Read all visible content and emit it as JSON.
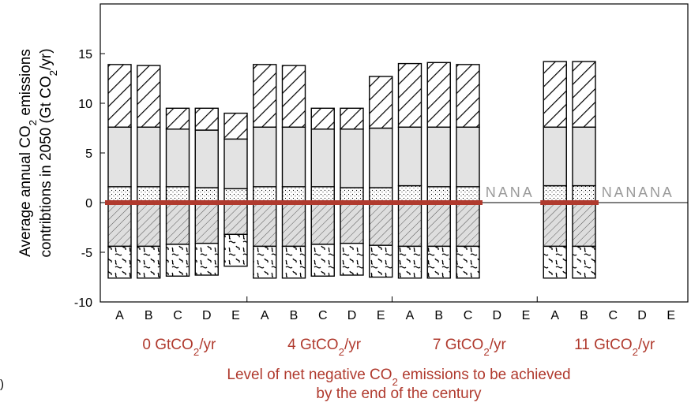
{
  "chart_data": {
    "type": "bar",
    "stacked": true,
    "ylabel_parts": [
      "Average annual CO",
      "2",
      " emissions",
      "contribtions in 2050 (Gt CO",
      "2",
      "/yr)"
    ],
    "xlabel_parts": [
      "Level of net negative CO",
      "2",
      " emissions to be achieved",
      "by the end of the century"
    ],
    "ylim": [
      -10,
      20
    ],
    "yticks": [
      -10,
      -5,
      0,
      5,
      10,
      15
    ],
    "grid": false,
    "legend": "none",
    "colors": {
      "accent": "#b03a2e",
      "gray_fill": "#e3e3e3",
      "frame": "#000000",
      "na_text": "#9a9a9a"
    },
    "scenario_groups": [
      {
        "label_parts": [
          "0 GtCO",
          "2",
          "/yr"
        ],
        "categories": [
          "A",
          "B",
          "C",
          "D",
          "E"
        ]
      },
      {
        "label_parts": [
          "4 GtCO",
          "2",
          "/yr"
        ],
        "categories": [
          "A",
          "B",
          "C",
          "D",
          "E"
        ]
      },
      {
        "label_parts": [
          "7 GtCO",
          "2",
          "/yr"
        ],
        "categories": [
          "A",
          "B",
          "C",
          "D",
          "E"
        ]
      },
      {
        "label_parts": [
          "11 GtCO",
          "2",
          "/yr"
        ],
        "categories": [
          "A",
          "B",
          "C",
          "D",
          "E"
        ]
      }
    ],
    "na_text": "NA",
    "stack_layers": [
      {
        "key": "dotted",
        "pattern": "dots"
      },
      {
        "key": "gray",
        "pattern": "solid-gray"
      },
      {
        "key": "diagonal",
        "pattern": "wide-hatch"
      },
      {
        "key": "neg_hatch",
        "pattern": "fine-hatch-gray"
      },
      {
        "key": "neg_squiggle",
        "pattern": "squiggle"
      }
    ],
    "bars": [
      {
        "group": 0,
        "category": "A",
        "dotted": [
          0,
          1.6
        ],
        "gray": [
          1.6,
          7.6
        ],
        "diagonal": [
          7.6,
          13.9
        ],
        "neg_hatch": [
          -4.4,
          0
        ],
        "neg_squiggle": [
          -7.6,
          -4.4
        ]
      },
      {
        "group": 0,
        "category": "B",
        "dotted": [
          0,
          1.6
        ],
        "gray": [
          1.6,
          7.6
        ],
        "diagonal": [
          7.6,
          13.8
        ],
        "neg_hatch": [
          -4.4,
          0
        ],
        "neg_squiggle": [
          -7.6,
          -4.4
        ]
      },
      {
        "group": 0,
        "category": "C",
        "dotted": [
          0,
          1.6
        ],
        "gray": [
          1.6,
          7.4
        ],
        "diagonal": [
          7.4,
          9.5
        ],
        "neg_hatch": [
          -4.2,
          0
        ],
        "neg_squiggle": [
          -7.4,
          -4.2
        ]
      },
      {
        "group": 0,
        "category": "D",
        "dotted": [
          0,
          1.5
        ],
        "gray": [
          1.5,
          7.3
        ],
        "diagonal": [
          7.3,
          9.5
        ],
        "neg_hatch": [
          -4.1,
          0
        ],
        "neg_squiggle": [
          -7.3,
          -4.1
        ]
      },
      {
        "group": 0,
        "category": "E",
        "dotted": [
          0,
          1.4
        ],
        "gray": [
          1.4,
          6.4
        ],
        "diagonal": [
          6.4,
          9.0
        ],
        "neg_hatch": [
          -3.2,
          0
        ],
        "neg_squiggle": [
          -6.4,
          -3.2
        ]
      },
      {
        "group": 1,
        "category": "A",
        "dotted": [
          0,
          1.6
        ],
        "gray": [
          1.6,
          7.6
        ],
        "diagonal": [
          7.6,
          13.9
        ],
        "neg_hatch": [
          -4.4,
          0
        ],
        "neg_squiggle": [
          -7.6,
          -4.4
        ]
      },
      {
        "group": 1,
        "category": "B",
        "dotted": [
          0,
          1.6
        ],
        "gray": [
          1.6,
          7.6
        ],
        "diagonal": [
          7.6,
          13.8
        ],
        "neg_hatch": [
          -4.4,
          0
        ],
        "neg_squiggle": [
          -7.6,
          -4.4
        ]
      },
      {
        "group": 1,
        "category": "C",
        "dotted": [
          0,
          1.6
        ],
        "gray": [
          1.6,
          7.4
        ],
        "diagonal": [
          7.4,
          9.5
        ],
        "neg_hatch": [
          -4.2,
          0
        ],
        "neg_squiggle": [
          -7.4,
          -4.2
        ]
      },
      {
        "group": 1,
        "category": "D",
        "dotted": [
          0,
          1.5
        ],
        "gray": [
          1.5,
          7.4
        ],
        "diagonal": [
          7.4,
          9.5
        ],
        "neg_hatch": [
          -4.1,
          0
        ],
        "neg_squiggle": [
          -7.3,
          -4.1
        ]
      },
      {
        "group": 1,
        "category": "E",
        "dotted": [
          0,
          1.5
        ],
        "gray": [
          1.5,
          7.5
        ],
        "diagonal": [
          7.5,
          12.7
        ],
        "neg_hatch": [
          -4.3,
          0
        ],
        "neg_squiggle": [
          -7.5,
          -4.3
        ]
      },
      {
        "group": 2,
        "category": "A",
        "dotted": [
          0,
          1.7
        ],
        "gray": [
          1.7,
          7.6
        ],
        "diagonal": [
          7.6,
          14.0
        ],
        "neg_hatch": [
          -4.4,
          0
        ],
        "neg_squiggle": [
          -7.6,
          -4.4
        ]
      },
      {
        "group": 2,
        "category": "B",
        "dotted": [
          0,
          1.6
        ],
        "gray": [
          1.6,
          7.6
        ],
        "diagonal": [
          7.6,
          14.1
        ],
        "neg_hatch": [
          -4.4,
          0
        ],
        "neg_squiggle": [
          -7.6,
          -4.4
        ]
      },
      {
        "group": 2,
        "category": "C",
        "dotted": [
          0,
          1.6
        ],
        "gray": [
          1.6,
          7.6
        ],
        "diagonal": [
          7.6,
          13.9
        ],
        "neg_hatch": [
          -4.4,
          0
        ],
        "neg_squiggle": [
          -7.6,
          -4.4
        ]
      },
      {
        "group": 2,
        "category": "D",
        "na": true
      },
      {
        "group": 2,
        "category": "E",
        "na": true
      },
      {
        "group": 3,
        "category": "A",
        "dotted": [
          0,
          1.7
        ],
        "gray": [
          1.7,
          7.6
        ],
        "diagonal": [
          7.6,
          14.2
        ],
        "neg_hatch": [
          -4.4,
          0
        ],
        "neg_squiggle": [
          -7.6,
          -4.4
        ]
      },
      {
        "group": 3,
        "category": "B",
        "dotted": [
          0,
          1.7
        ],
        "gray": [
          1.7,
          7.6
        ],
        "diagonal": [
          7.6,
          14.2
        ],
        "neg_hatch": [
          -4.4,
          0
        ],
        "neg_squiggle": [
          -7.6,
          -4.4
        ]
      },
      {
        "group": 3,
        "category": "C",
        "na": true
      },
      {
        "group": 3,
        "category": "D",
        "na": true
      },
      {
        "group": 3,
        "category": "E",
        "na": true
      }
    ]
  },
  "left_fragment": ")"
}
